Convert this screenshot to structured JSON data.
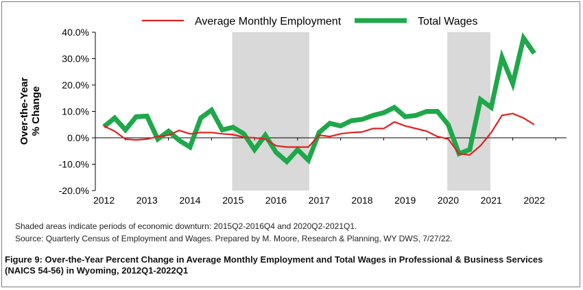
{
  "chart_data": {
    "type": "line",
    "ylabel_lines": [
      "Over-the-Year",
      "% Change"
    ],
    "ylim": [
      -20,
      40
    ],
    "yticks": [
      -20,
      -10,
      0,
      10,
      20,
      30,
      40
    ],
    "ytick_labels": [
      "-20.0%",
      "-10.0%",
      "0.0%",
      "10.0%",
      "20.0%",
      "30.0%",
      "40.0%"
    ],
    "xlim": [
      2011.8,
      2022.75
    ],
    "xticks": [
      2012,
      2013,
      2014,
      2015,
      2016,
      2017,
      2018,
      2019,
      2020,
      2021,
      2022
    ],
    "xtick_labels": [
      "2012",
      "2013",
      "2014",
      "2015",
      "2016",
      "2017",
      "2018",
      "2019",
      "2020",
      "2021",
      "2022"
    ],
    "grid": false,
    "legend_position": "top",
    "shaded_periods": [
      {
        "label": "2015Q2-2016Q4",
        "start": 2014.98,
        "end": 2016.77
      },
      {
        "label": "2020Q2-2021Q1",
        "start": 2019.98,
        "end": 2020.98
      }
    ],
    "series": [
      {
        "name": "Average Monthly Employment",
        "color": "#e02020",
        "values": [
          [
            2012.0,
            4.5
          ],
          [
            2012.25,
            2.5
          ],
          [
            2012.5,
            -0.5
          ],
          [
            2012.75,
            -0.8
          ],
          [
            2013.0,
            -0.5
          ],
          [
            2013.25,
            0.5
          ],
          [
            2013.5,
            1.0
          ],
          [
            2013.75,
            2.8
          ],
          [
            2014.0,
            1.5
          ],
          [
            2014.25,
            2.0
          ],
          [
            2014.5,
            2.0
          ],
          [
            2014.75,
            1.5
          ],
          [
            2015.0,
            1.2
          ],
          [
            2015.25,
            0.2
          ],
          [
            2015.5,
            0.0
          ],
          [
            2015.75,
            -0.5
          ],
          [
            2016.0,
            -3.0
          ],
          [
            2016.25,
            -3.5
          ],
          [
            2016.5,
            -3.5
          ],
          [
            2016.75,
            -3.5
          ],
          [
            2017.0,
            1.0
          ],
          [
            2017.25,
            0.5
          ],
          [
            2017.5,
            1.5
          ],
          [
            2017.75,
            2.0
          ],
          [
            2018.0,
            2.2
          ],
          [
            2018.25,
            3.5
          ],
          [
            2018.5,
            3.5
          ],
          [
            2018.75,
            6.0
          ],
          [
            2019.0,
            4.5
          ],
          [
            2019.25,
            3.5
          ],
          [
            2019.5,
            2.5
          ],
          [
            2019.75,
            0.5
          ],
          [
            2020.0,
            -0.5
          ],
          [
            2020.25,
            -6.0
          ],
          [
            2020.5,
            -6.5
          ],
          [
            2020.75,
            -3.0
          ],
          [
            2021.0,
            2.0
          ],
          [
            2021.25,
            8.5
          ],
          [
            2021.5,
            9.2
          ],
          [
            2021.75,
            7.5
          ],
          [
            2022.0,
            5.0
          ]
        ]
      },
      {
        "name": "Total Wages",
        "color": "#1ea84a",
        "values": [
          [
            2012.0,
            4.2
          ],
          [
            2012.25,
            7.5
          ],
          [
            2012.5,
            3.0
          ],
          [
            2012.75,
            8.0
          ],
          [
            2013.0,
            8.2
          ],
          [
            2013.25,
            -0.5
          ],
          [
            2013.5,
            2.5
          ],
          [
            2013.75,
            -1.0
          ],
          [
            2014.0,
            -3.5
          ],
          [
            2014.25,
            7.5
          ],
          [
            2014.5,
            10.5
          ],
          [
            2014.75,
            3.0
          ],
          [
            2015.0,
            4.0
          ],
          [
            2015.25,
            1.5
          ],
          [
            2015.5,
            -4.5
          ],
          [
            2015.75,
            1.0
          ],
          [
            2016.0,
            -5.5
          ],
          [
            2016.25,
            -9.0
          ],
          [
            2016.5,
            -4.5
          ],
          [
            2016.75,
            -8.5
          ],
          [
            2017.0,
            2.0
          ],
          [
            2017.25,
            5.5
          ],
          [
            2017.5,
            4.5
          ],
          [
            2017.75,
            6.5
          ],
          [
            2018.0,
            7.0
          ],
          [
            2018.25,
            8.5
          ],
          [
            2018.5,
            9.5
          ],
          [
            2018.75,
            11.5
          ],
          [
            2019.0,
            8.0
          ],
          [
            2019.25,
            8.5
          ],
          [
            2019.5,
            10.0
          ],
          [
            2019.75,
            10.0
          ],
          [
            2020.0,
            5.0
          ],
          [
            2020.25,
            -6.0
          ],
          [
            2020.5,
            -4.5
          ],
          [
            2020.75,
            14.5
          ],
          [
            2021.0,
            11.5
          ],
          [
            2021.25,
            30.5
          ],
          [
            2021.5,
            20.5
          ],
          [
            2021.75,
            37.8
          ],
          [
            2022.0,
            32.0
          ]
        ]
      }
    ]
  },
  "notes": {
    "shading": "Shaded areas indicate periods of economic downturn: 2015Q2-2016Q4 and 2020Q2-2021Q1.",
    "source": "Source: Quarterly Census of Employment and Wages. Prepared by M. Moore, Research & Planning, WY DWS, 7/27/22."
  },
  "caption": "Figure 9: Over-the-Year Percent Change in Average Monthly Employment and Total Wages in Professional & Business Services (NAICS 54-56) in Wyoming, 2012Q1-2022Q1"
}
